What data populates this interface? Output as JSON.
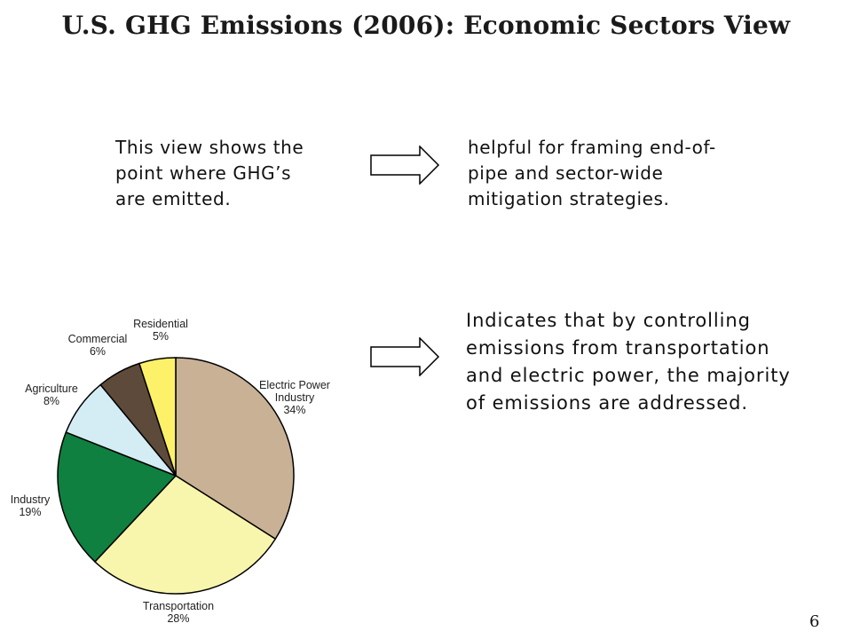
{
  "slide": {
    "title": "U.S. GHG Emissions (2006): Economic Sectors View",
    "page_number": "6"
  },
  "statements": [
    {
      "lines": [
        "This view shows the",
        "point where GHG’s",
        "are emitted."
      ]
    },
    {
      "lines": [
        "helpful for framing end-of-",
        "pipe and sector-wide",
        "mitigation strategies."
      ]
    },
    {
      "lines": [
        "Indicates that by controlling",
        "emissions from transportation",
        "and electric power, the majority",
        "of emissions are addressed."
      ]
    }
  ],
  "icons": {
    "arrow": "right-arrow-icon"
  },
  "chart_data": {
    "type": "pie",
    "slices": [
      {
        "label_lines": [
          "Electric Power",
          "Industry"
        ],
        "percent_text": "34%",
        "value": 34,
        "color": "#c9b196"
      },
      {
        "label_lines": [
          "Transportation"
        ],
        "percent_text": "28%",
        "value": 28,
        "color": "#f8f5ad"
      },
      {
        "label_lines": [
          "Industry"
        ],
        "percent_text": "19%",
        "value": 19,
        "color": "#0f8040"
      },
      {
        "label_lines": [
          "Agriculture"
        ],
        "percent_text": "8%",
        "value": 8,
        "color": "#d4ecf4"
      },
      {
        "label_lines": [
          "Commercial"
        ],
        "percent_text": "6%",
        "value": 6,
        "color": "#5e4a3a"
      },
      {
        "label_lines": [
          "Residential"
        ],
        "percent_text": "5%",
        "value": 5,
        "color": "#fdf16a"
      }
    ],
    "start": "12 o'clock",
    "direction": "clockwise",
    "legend": "none (direct labels)"
  }
}
